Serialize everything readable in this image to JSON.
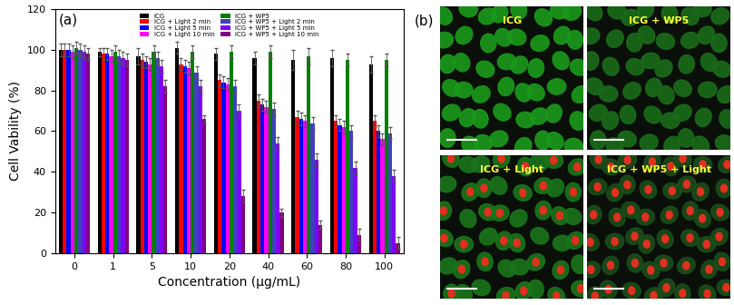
{
  "chart_data": {
    "type": "bar",
    "title": "(a)",
    "x_label": "Concentration (μg/mL)",
    "y_label": "Cell Vability (%)",
    "categories": [
      "0",
      "1",
      "5",
      "10",
      "20",
      "40",
      "60",
      "80",
      "100"
    ],
    "ylim": [
      0,
      120
    ],
    "yticks": [
      0,
      20,
      40,
      60,
      80,
      100,
      120
    ],
    "legend": "upper center",
    "series": [
      {
        "name": "ICG",
        "color": "#000000",
        "values": [
          100,
          99,
          97,
          101,
          98,
          96,
          95,
          96,
          93
        ],
        "errors": [
          3,
          2,
          4,
          3,
          3,
          3,
          5,
          4,
          4
        ]
      },
      {
        "name": "ICG + Light 2 min",
        "color": "#ff0000",
        "values": [
          100,
          98,
          95,
          93,
          85,
          75,
          67,
          65,
          65
        ],
        "errors": [
          3,
          3,
          3,
          3,
          3,
          3,
          3,
          3,
          3
        ]
      },
      {
        "name": "ICG + Light 5 min",
        "color": "#0000ff",
        "values": [
          100,
          98,
          94,
          92,
          84,
          73,
          66,
          63,
          60
        ],
        "errors": [
          3,
          3,
          3,
          3,
          3,
          3,
          3,
          3,
          3
        ]
      },
      {
        "name": "ICG + Light 10 min",
        "color": "#ff00ff",
        "values": [
          99,
          97,
          93,
          91,
          83,
          72,
          65,
          62,
          56
        ],
        "errors": [
          3,
          3,
          3,
          3,
          3,
          3,
          3,
          3,
          3
        ]
      },
      {
        "name": "ICG + WP5",
        "color": "#008000",
        "values": [
          101,
          99,
          99,
          99,
          99,
          99,
          97,
          95,
          95
        ],
        "errors": [
          3,
          3,
          3,
          3,
          3,
          3,
          4,
          3,
          3
        ]
      },
      {
        "name": "ICG + WP5 + Light 2 min",
        "color": "#3f3fbf",
        "values": [
          100,
          97,
          96,
          89,
          82,
          71,
          64,
          60,
          59
        ],
        "errors": [
          3,
          3,
          3,
          3,
          3,
          3,
          3,
          3,
          3
        ]
      },
      {
        "name": "ICG + WP5 + Light 5 min",
        "color": "#7f00ff",
        "values": [
          99,
          96,
          92,
          82,
          70,
          54,
          46,
          42,
          38
        ],
        "errors": [
          3,
          3,
          3,
          3,
          3,
          3,
          3,
          3,
          3
        ]
      },
      {
        "name": "ICG + WP5 + Light 10 min",
        "color": "#800080",
        "values": [
          98,
          95,
          82,
          66,
          28,
          20,
          14,
          9,
          5
        ],
        "errors": [
          3,
          3,
          3,
          2,
          3,
          2,
          2,
          3,
          3
        ]
      }
    ]
  },
  "images": {
    "label": "(b)",
    "panels": [
      {
        "label": "ICG"
      },
      {
        "label": "ICG + WP5"
      },
      {
        "label": "ICG + Light"
      },
      {
        "label": "ICG + WP5 + Light"
      }
    ]
  }
}
